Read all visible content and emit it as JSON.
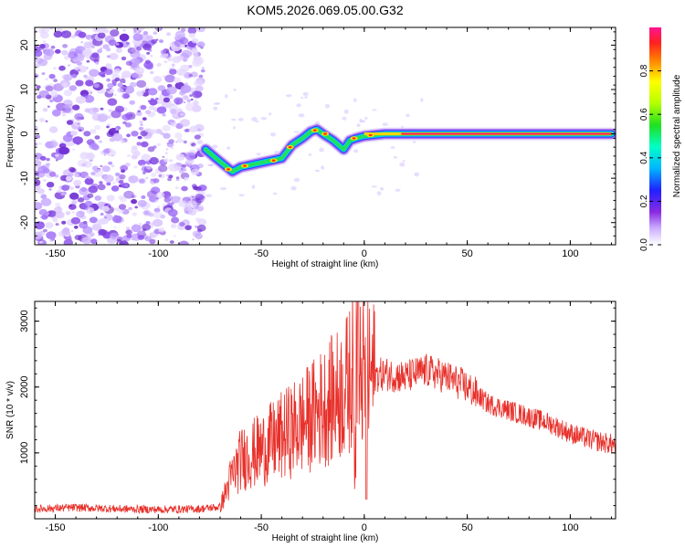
{
  "title": "KOM5.2026.069.05.00.G32",
  "chart_data": [
    {
      "type": "heatmap",
      "title": "KOM5.2026.069.05.00.G32",
      "xlabel": "Height of straight line (km)",
      "ylabel": "Frequency (Hz)",
      "xlim": [
        -160,
        122
      ],
      "ylim": [
        -25,
        24
      ],
      "xticks": [
        -150,
        -100,
        -50,
        0,
        50,
        100
      ],
      "yticks": [
        -20,
        -10,
        0,
        10,
        20
      ],
      "noise_region_x": [
        -160,
        -78
      ],
      "ridge_track": {
        "x": [
          -77,
          -72,
          -68,
          -64,
          -60,
          -55,
          -50,
          -45,
          -40,
          -35,
          -30,
          -26,
          -23,
          -20,
          -15,
          -10,
          -7,
          -4,
          0,
          10,
          20,
          40,
          60,
          80,
          100,
          120
        ],
        "freq": [
          -3.5,
          -5.5,
          -7,
          -8.5,
          -7.5,
          -7,
          -6.5,
          -6,
          -5.5,
          -2.5,
          -1,
          0.5,
          1,
          0,
          -1.5,
          -3.5,
          -1.5,
          -1,
          -0.5,
          0,
          0,
          0,
          0,
          0,
          0,
          0
        ]
      },
      "colorbar": {
        "label": "Normalized spectral amplitude",
        "ticks": [
          "0.0",
          "0.2",
          "0.4",
          "0.6",
          "0.8"
        ]
      }
    },
    {
      "type": "line",
      "xlabel": "Height of straight line (km)",
      "ylabel": "SNR (10 * v/v)",
      "xlim": [
        -160,
        122
      ],
      "ylim": [
        0,
        3300
      ],
      "xticks": [
        -150,
        -100,
        -50,
        0,
        50,
        100
      ],
      "yticks": [
        1000,
        2000,
        3000
      ],
      "color": "#e8302a",
      "series": [
        {
          "name": "SNR",
          "x": [
            -160,
            -140,
            -120,
            -100,
            -80,
            -70,
            -65,
            -60,
            -50,
            -40,
            -30,
            -20,
            -10,
            -3,
            0,
            10,
            20,
            30,
            40,
            50,
            60,
            70,
            80,
            90,
            100,
            110,
            122
          ],
          "values": [
            150,
            170,
            150,
            140,
            150,
            180,
            600,
            900,
            1050,
            1250,
            1450,
            1700,
            1950,
            2300,
            2150,
            2200,
            2150,
            2250,
            2150,
            2000,
            1750,
            1650,
            1550,
            1450,
            1300,
            1200,
            1120
          ]
        }
      ]
    }
  ]
}
